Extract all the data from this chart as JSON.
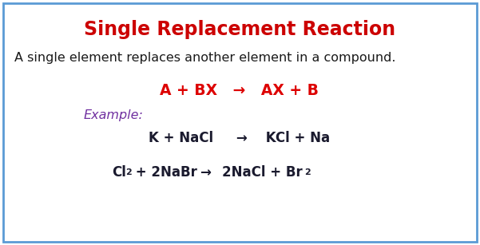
{
  "title": "Single Replacement Reaction",
  "title_color": "#cc0000",
  "title_fontsize": 17,
  "bg_color": "#ffffff",
  "border_color": "#5b9bd5",
  "border_linewidth": 2.0,
  "description": "A single element replaces another element in a compound.",
  "description_color": "#1a1a1a",
  "description_fontsize": 11.5,
  "general_eq": "A + BX   →   AX + B",
  "general_eq_color": "#dd0000",
  "general_eq_fontsize": 13.5,
  "example_label": "Example:",
  "example_color": "#7030a0",
  "example_fontsize": 11.5,
  "eq_color": "#1a1a2e",
  "eq1_fontsize": 12,
  "eq2_fontsize": 12,
  "sub_fontsize": 8
}
